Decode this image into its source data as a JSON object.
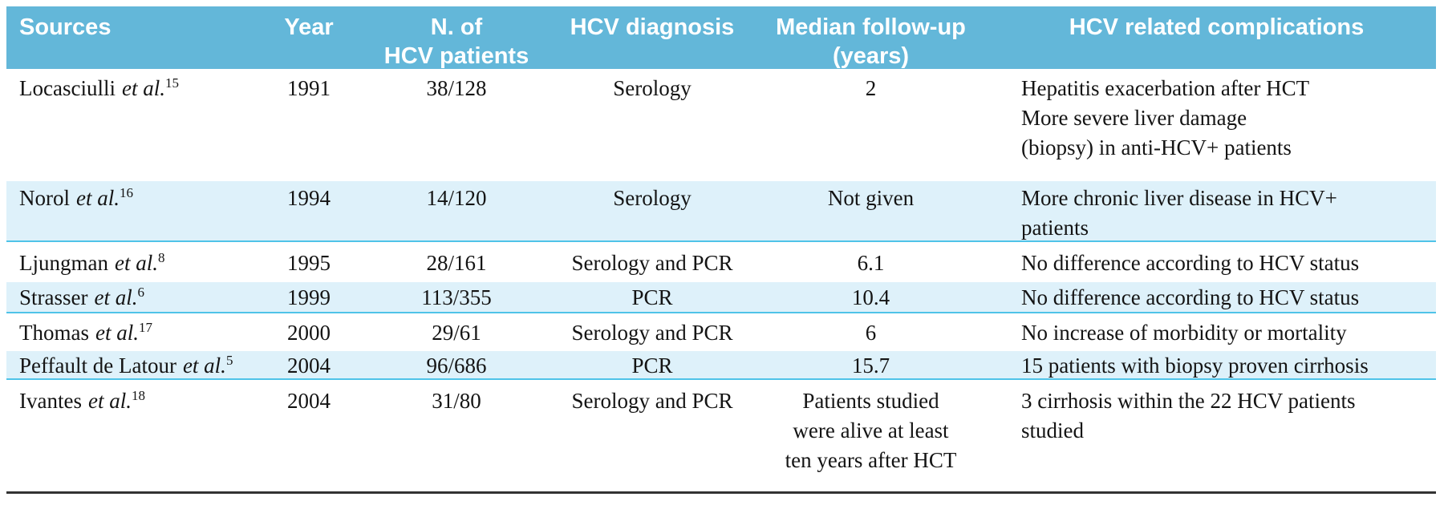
{
  "colors": {
    "header_bg": "#63b7d9",
    "row_shade_bg": "#def1fa",
    "separator": "#4fc3e8",
    "bottom_rule": "#333333",
    "header_text": "#ffffff",
    "body_text": "#141414"
  },
  "table": {
    "headers": [
      "Sources",
      "Year",
      "N. of\nHCV patients",
      "HCV diagnosis",
      "Median follow-up\n(years)",
      "HCV related complications"
    ],
    "rows": [
      {
        "source": {
          "name": "Locasciulli",
          "etal": "et al.",
          "ref": "15"
        },
        "year": "1991",
        "n_patients": "38/128",
        "diagnosis": "Serology",
        "followup": "2",
        "complications": "Hepatitis exacerbation after HCT\nMore severe liver damage\n(biopsy) in anti-HCV+ patients"
      },
      {
        "source": {
          "name": "Norol",
          "etal": "et al.",
          "ref": "16"
        },
        "year": "1994",
        "n_patients": "14/120",
        "diagnosis": "Serology",
        "followup": "Not given",
        "complications": "More chronic liver disease in HCV+\npatients"
      },
      {
        "source": {
          "name": "Ljungman",
          "etal": "et al.",
          "ref": "8"
        },
        "year": "1995",
        "n_patients": "28/161",
        "diagnosis": "Serology and PCR",
        "followup": "6.1",
        "complications": "No difference according to HCV status"
      },
      {
        "source": {
          "name": "Strasser",
          "etal": "et al.",
          "ref": "6"
        },
        "year": "1999",
        "n_patients": "113/355",
        "diagnosis": "PCR",
        "followup": "10.4",
        "complications": "No difference according to HCV status"
      },
      {
        "source": {
          "name": "Thomas",
          "etal": "et al.",
          "ref": "17"
        },
        "year": "2000",
        "n_patients": "29/61",
        "diagnosis": "Serology and PCR",
        "followup": "6",
        "complications": "No increase of morbidity or mortality"
      },
      {
        "source": {
          "name": "Peffault de Latour",
          "etal": "et al.",
          "ref": "5"
        },
        "year": "2004",
        "n_patients": "96/686",
        "diagnosis": "PCR",
        "followup": "15.7",
        "complications": "15 patients with biopsy proven cirrhosis"
      },
      {
        "source": {
          "name": "Ivantes",
          "etal": "et al.",
          "ref": "18"
        },
        "year": "2004",
        "n_patients": "31/80",
        "diagnosis": "Serology and PCR",
        "followup": "Patients studied\nwere alive at least\nten years after HCT",
        "complications": "3 cirrhosis within the 22 HCV patients\nstudied"
      }
    ]
  }
}
